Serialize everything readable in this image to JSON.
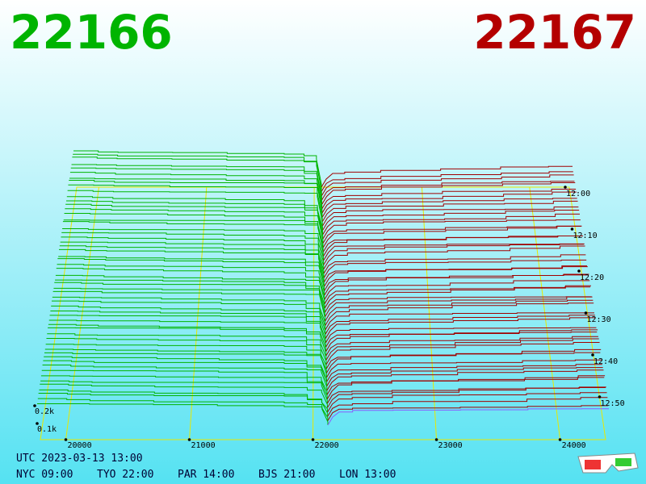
{
  "header": {
    "bid": "22166",
    "ask": "22167"
  },
  "price_axis": [
    "20000",
    "21000",
    "22000",
    "23000",
    "24000"
  ],
  "time_axis": [
    "12:00",
    "12:10",
    "12:20",
    "12:30",
    "12:40",
    "12:50"
  ],
  "depth_axis": [
    "0.2k",
    "0.1k"
  ],
  "footer": {
    "utc": "UTC 2023-03-13 13:00",
    "clocks": [
      "NYC 09:00",
      "TYO 22:00",
      "PAR 14:00",
      "BJS 21:00",
      "LON 13:00"
    ]
  }
}
